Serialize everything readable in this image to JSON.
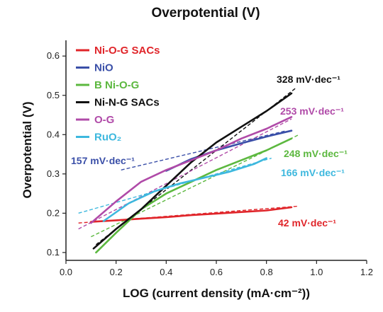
{
  "chart_data": {
    "type": "line",
    "title": "Overpotential (V)",
    "xlabel": "LOG (current density (mA·cm⁻²))",
    "ylabel": "Overpotential (V)",
    "xlim": [
      0.0,
      1.2
    ],
    "ylim": [
      0.08,
      0.64
    ],
    "xticks": [
      "0.0",
      "0.2",
      "0.4",
      "0.6",
      "0.8",
      "1.0",
      "1.2"
    ],
    "yticks": [
      "0.1",
      "0.2",
      "0.3",
      "0.4",
      "0.5",
      "0.6"
    ],
    "grid": false,
    "legend_position": "top-left",
    "series": [
      {
        "name": "Ni-O-G SACs",
        "color": "#e0252a",
        "x": [
          0.1,
          0.2,
          0.3,
          0.4,
          0.5,
          0.6,
          0.7,
          0.8,
          0.9
        ],
        "y": [
          0.178,
          0.182,
          0.186,
          0.19,
          0.195,
          0.199,
          0.203,
          0.207,
          0.215
        ],
        "fit": {
          "x": [
            0.05,
            0.93
          ],
          "y": [
            0.175,
            0.218
          ]
        },
        "tafel_label": "42 mV·dec⁻¹"
      },
      {
        "name": "NiO",
        "color": "#3a4fa8",
        "x": [
          0.4,
          0.5,
          0.6,
          0.7,
          0.8,
          0.9
        ],
        "y": [
          0.308,
          0.338,
          0.36,
          0.378,
          0.395,
          0.41
        ],
        "fit": {
          "x": [
            0.22,
            0.88
          ],
          "y": [
            0.31,
            0.41
          ]
        },
        "tafel_label": "157 mV·dec⁻¹"
      },
      {
        "name": "B Ni-O-G",
        "color": "#5cb83f",
        "x": [
          0.12,
          0.2,
          0.3,
          0.4,
          0.5,
          0.6,
          0.7,
          0.8,
          0.9
        ],
        "y": [
          0.1,
          0.15,
          0.21,
          0.25,
          0.28,
          0.31,
          0.335,
          0.36,
          0.39
        ],
        "fit": {
          "x": [
            0.1,
            0.93
          ],
          "y": [
            0.14,
            0.4
          ]
        },
        "tafel_label": "248 mV·dec⁻¹"
      },
      {
        "name": "Ni-N-G SACs",
        "color": "#111111",
        "x": [
          0.11,
          0.2,
          0.3,
          0.4,
          0.5,
          0.6,
          0.7,
          0.8,
          0.9
        ],
        "y": [
          0.11,
          0.16,
          0.21,
          0.27,
          0.33,
          0.38,
          0.42,
          0.46,
          0.505
        ],
        "fit": {
          "x": [
            0.12,
            0.92
          ],
          "y": [
            0.12,
            0.52
          ]
        },
        "tafel_label": "328 mV·dec⁻¹"
      },
      {
        "name": "O-G",
        "color": "#b04aa8",
        "x": [
          0.1,
          0.2,
          0.3,
          0.4,
          0.5,
          0.6,
          0.7,
          0.8,
          0.9
        ],
        "y": [
          0.175,
          0.23,
          0.28,
          0.31,
          0.335,
          0.36,
          0.39,
          0.415,
          0.445
        ],
        "fit": {
          "x": [
            0.05,
            0.9
          ],
          "y": [
            0.16,
            0.44
          ]
        },
        "tafel_label": "253 mV·dec⁻¹"
      },
      {
        "name": "RuO₂",
        "color": "#3db8de",
        "x": [
          0.15,
          0.25,
          0.35,
          0.45,
          0.55,
          0.65,
          0.75,
          0.8
        ],
        "y": [
          0.18,
          0.225,
          0.255,
          0.275,
          0.29,
          0.305,
          0.325,
          0.34
        ],
        "fit": {
          "x": [
            0.05,
            0.82
          ],
          "y": [
            0.2,
            0.34
          ]
        },
        "tafel_label": "166 mV·dec⁻¹"
      }
    ]
  }
}
